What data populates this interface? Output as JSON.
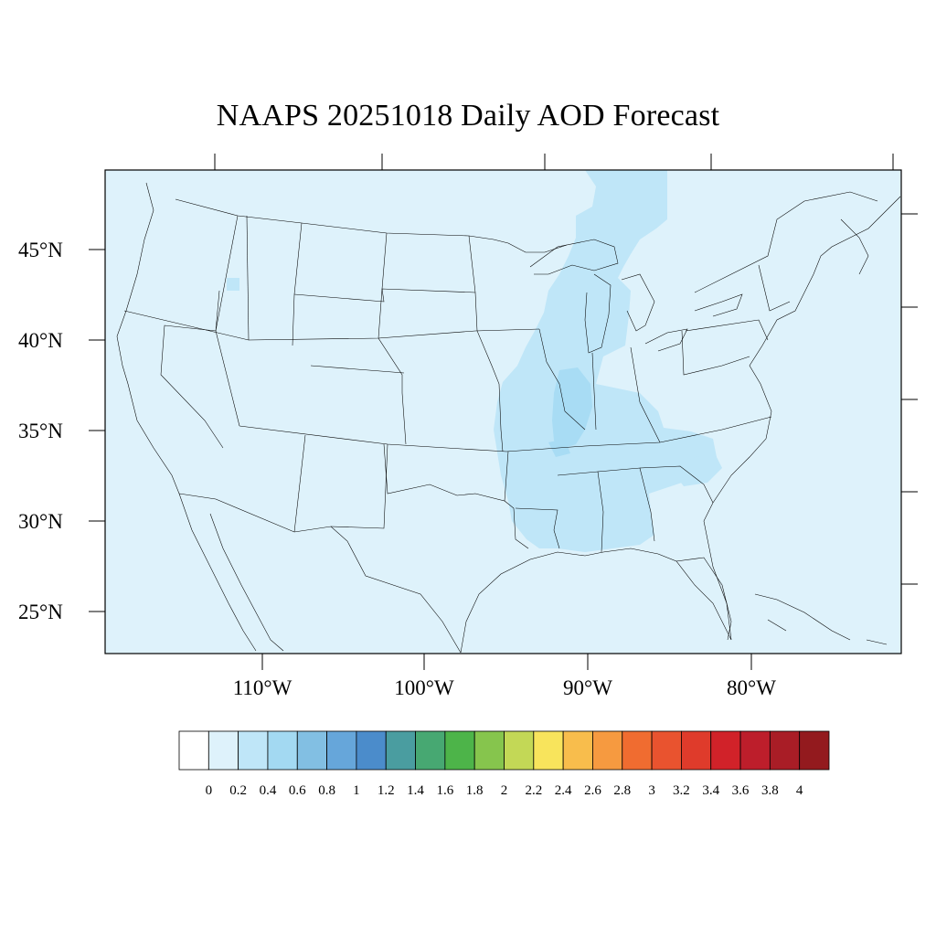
{
  "title": "NAAPS 20251018 Daily AOD Forecast",
  "map": {
    "background_color": "#def2fb",
    "lat_labels": [
      "45°N",
      "40°N",
      "35°N",
      "30°N",
      "25°N"
    ],
    "lon_labels": [
      "110°W",
      "100°W",
      "90°W",
      "80°W"
    ],
    "aod_colors": {
      "low": "#def2fb",
      "light": "#bfe6f8",
      "medium": "#a3d9f2"
    }
  },
  "colorbar": {
    "labels": [
      "0",
      "0.2",
      "0.4",
      "0.6",
      "0.8",
      "1",
      "1.2",
      "1.4",
      "1.6",
      "1.8",
      "2",
      "2.2",
      "2.4",
      "2.6",
      "2.8",
      "3",
      "3.2",
      "3.4",
      "3.6",
      "3.8",
      "4"
    ],
    "colors": [
      "#ffffff",
      "#def2fb",
      "#bfe6f8",
      "#a3d9f2",
      "#82bfe3",
      "#66a6da",
      "#4b8ccb",
      "#4a9da0",
      "#47a872",
      "#4db449",
      "#86c54d",
      "#c3d856",
      "#f8e45c",
      "#f8bd4c",
      "#f69a40",
      "#f06c30",
      "#e9532f",
      "#df3b2b",
      "#d12229",
      "#bd1e2b",
      "#a91d26",
      "#931a1e"
    ]
  }
}
